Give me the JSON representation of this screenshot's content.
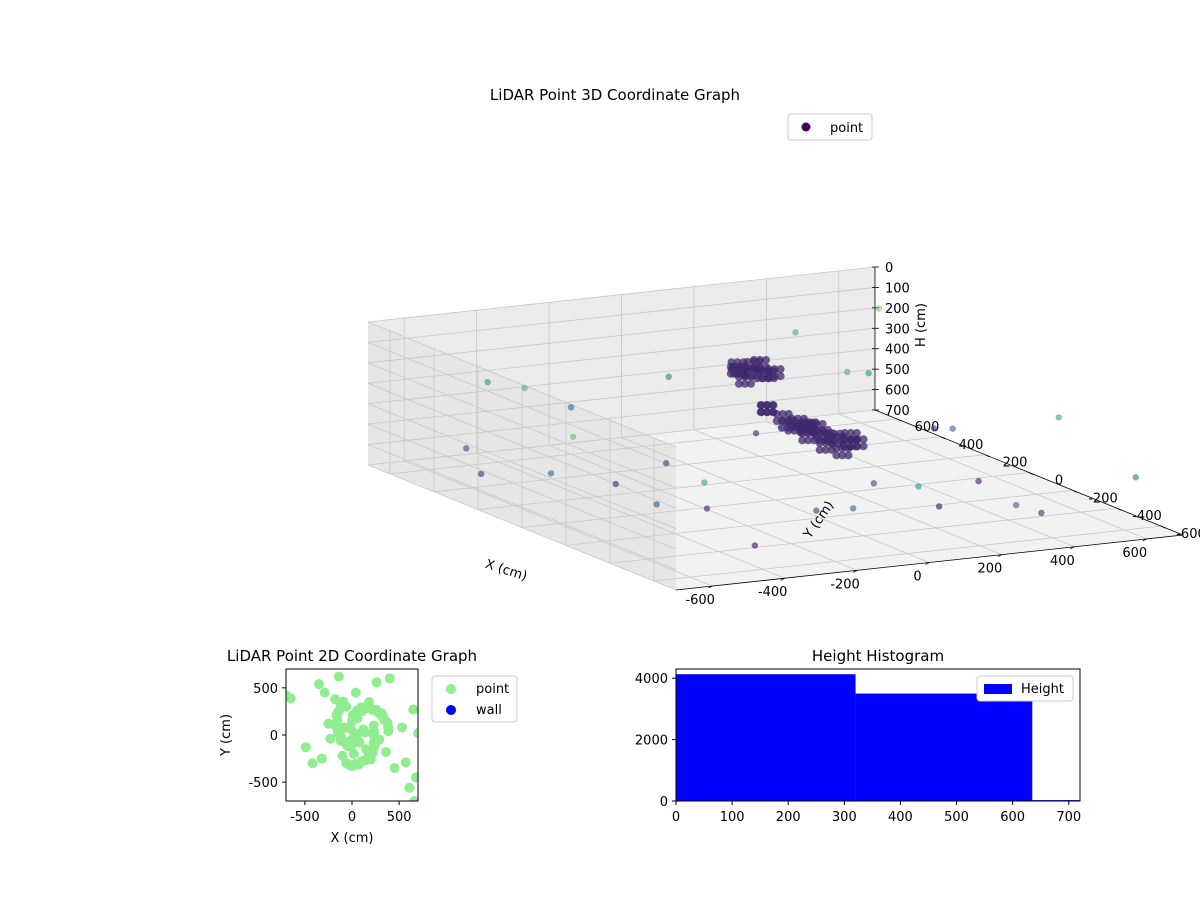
{
  "figure": {
    "background": "#ffffff"
  },
  "chart_data": [
    {
      "type": "scatter3d",
      "title": "LiDAR Point 3D Coordinate Graph",
      "xlabel": "X (cm)",
      "ylabel": "Y (cm)",
      "zlabel": "H (cm)",
      "xlim": [
        -700,
        700
      ],
      "ylim": [
        -700,
        700
      ],
      "zlim": [
        0,
        700
      ],
      "z_inverted": true,
      "xticks": [
        -600,
        -400,
        -200,
        0,
        200,
        400,
        600
      ],
      "yticks": [
        -600,
        -400,
        -200,
        0,
        200,
        400,
        600
      ],
      "zticks": [
        0,
        100,
        200,
        300,
        400,
        500,
        600,
        700
      ],
      "grid": true,
      "legend": {
        "position": "top-right",
        "entries": [
          "point"
        ]
      },
      "colormap": "viridis",
      "colormap_stops": [
        "#440154",
        "#3b528b",
        "#21918c",
        "#5ec962",
        "#fde725"
      ],
      "series": [
        {
          "name": "point",
          "color_by": "z",
          "cluster_note": "dense",
          "points": [
            [
              -50,
              80,
              90
            ],
            [
              -30,
              60,
              95
            ],
            [
              0,
              100,
              85
            ],
            [
              30,
              120,
              90
            ],
            [
              -20,
              140,
              100
            ],
            [
              10,
              50,
              110
            ],
            [
              -60,
              40,
              120
            ],
            [
              20,
              90,
              130
            ],
            [
              -40,
              110,
              105
            ],
            [
              40,
              70,
              115
            ],
            [
              -10,
              20,
              260
            ],
            [
              20,
              0,
              300
            ],
            [
              50,
              -20,
              320
            ],
            [
              80,
              -10,
              350
            ],
            [
              100,
              10,
              360
            ],
            [
              60,
              -50,
              380
            ],
            [
              120,
              -30,
              400
            ],
            [
              140,
              20,
              410
            ],
            [
              90,
              -80,
              420
            ],
            [
              160,
              -20,
              430
            ],
            [
              180,
              30,
              440
            ],
            [
              130,
              -90,
              450
            ],
            [
              200,
              -10,
              455
            ],
            [
              110,
              40,
              390
            ],
            [
              70,
              30,
              370
            ],
            [
              150,
              60,
              400
            ],
            [
              190,
              -60,
              430
            ],
            [
              40,
              10,
              340
            ],
            [
              0,
              40,
              270
            ],
            [
              220,
              20,
              440
            ]
          ]
        },
        {
          "name": "",
          "color_by": "z",
          "points": [
            [
              -550,
              500,
              560
            ],
            [
              -480,
              -250,
              520
            ],
            [
              -600,
              350,
              610
            ],
            [
              -300,
              -400,
              690
            ],
            [
              -200,
              600,
              470
            ],
            [
              -150,
              -600,
              450
            ],
            [
              100,
              650,
              400
            ],
            [
              300,
              -600,
              520
            ],
            [
              500,
              400,
              350
            ],
            [
              600,
              -300,
              280
            ],
            [
              650,
              600,
              150
            ],
            [
              -650,
              -150,
              200
            ],
            [
              400,
              -550,
              600
            ],
            [
              -400,
              650,
              330
            ],
            [
              250,
              500,
              640
            ],
            [
              550,
              100,
              500
            ],
            [
              -100,
              -350,
              580
            ],
            [
              350,
              250,
              250
            ],
            [
              -350,
              150,
              620
            ],
            [
              600,
              -650,
              420
            ],
            [
              150,
              -200,
              560
            ],
            [
              -500,
              -500,
              300
            ],
            [
              450,
              650,
              250
            ],
            [
              -250,
              -100,
              650
            ],
            [
              620,
              300,
              600
            ],
            [
              0,
              -650,
              350
            ],
            [
              -620,
              0,
              450
            ],
            [
              300,
              -250,
              680
            ],
            [
              200,
              300,
              520
            ],
            [
              -450,
              400,
              240
            ],
            [
              500,
              -100,
              660
            ],
            [
              -150,
              250,
              600
            ]
          ]
        }
      ]
    },
    {
      "type": "scatter",
      "title": "LiDAR Point 2D Coordinate Graph",
      "xlabel": "X (cm)",
      "ylabel": "Y (cm)",
      "xlim": [
        -700,
        700
      ],
      "ylim": [
        -700,
        700
      ],
      "xticks": [
        -500,
        0,
        500
      ],
      "yticks": [
        -500,
        0,
        500
      ],
      "grid": false,
      "legend": {
        "position": "outside-right",
        "entries": [
          "point",
          "wall"
        ]
      },
      "series": [
        {
          "name": "point",
          "color": "#90ee90",
          "points": [
            [
              -700,
              420
            ],
            [
              -650,
              390
            ],
            [
              -490,
              -130
            ],
            [
              -420,
              -300
            ],
            [
              -350,
              540
            ],
            [
              -320,
              -250
            ],
            [
              -290,
              450
            ],
            [
              -250,
              120
            ],
            [
              -230,
              -40
            ],
            [
              -180,
              380
            ],
            [
              -140,
              620
            ],
            [
              -100,
              -220
            ],
            [
              -60,
              300
            ],
            [
              -40,
              -120
            ],
            [
              0,
              150
            ],
            [
              20,
              -200
            ],
            [
              40,
              450
            ],
            [
              60,
              0
            ],
            [
              80,
              -80
            ],
            [
              100,
              250
            ],
            [
              120,
              60
            ],
            [
              150,
              -150
            ],
            [
              180,
              350
            ],
            [
              200,
              -260
            ],
            [
              230,
              100
            ],
            [
              260,
              560
            ],
            [
              290,
              -50
            ],
            [
              320,
              200
            ],
            [
              360,
              -180
            ],
            [
              400,
              600
            ],
            [
              450,
              -350
            ],
            [
              530,
              80
            ],
            [
              570,
              -290
            ],
            [
              610,
              -560
            ],
            [
              650,
              270
            ],
            [
              680,
              -450
            ],
            [
              700,
              20
            ],
            [
              660,
              -700
            ],
            [
              -10,
              60
            ],
            [
              30,
              20
            ],
            [
              -80,
              80
            ],
            [
              140,
              30
            ],
            [
              -120,
              -60
            ],
            [
              60,
              180
            ],
            [
              10,
              -40
            ]
          ]
        },
        {
          "name": "wall",
          "color": "#0000ff",
          "points": []
        }
      ]
    },
    {
      "type": "bar",
      "title": "Height Histogram",
      "xlabel": "",
      "ylabel": "",
      "xlim": [
        0,
        720
      ],
      "ylim": [
        0,
        4300
      ],
      "xticks": [
        0,
        100,
        200,
        300,
        400,
        500,
        600,
        700
      ],
      "yticks": [
        0,
        2000,
        4000
      ],
      "grid": false,
      "legend": {
        "position": "top-right",
        "entries": [
          "Height"
        ]
      },
      "series": [
        {
          "name": "Height",
          "color": "#0000ff",
          "bins": [
            {
              "start": 0,
              "end": 320,
              "count": 4130
            },
            {
              "start": 320,
              "end": 635,
              "count": 3500
            },
            {
              "start": 635,
              "end": 720,
              "count": 30
            }
          ]
        }
      ]
    }
  ]
}
